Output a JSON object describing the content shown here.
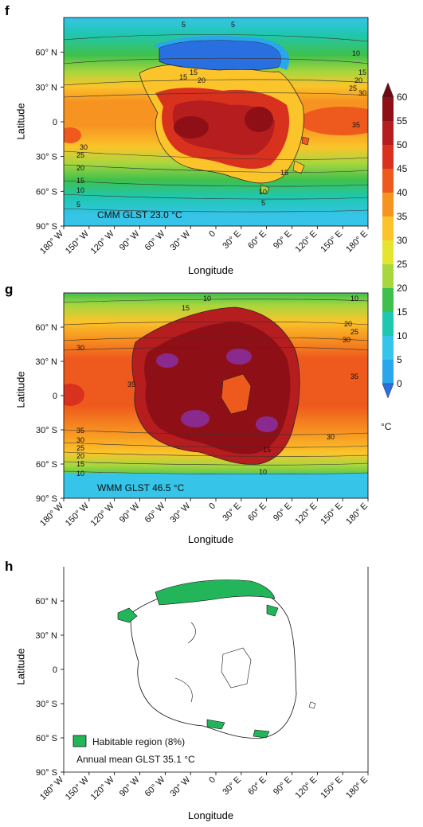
{
  "panels": [
    {
      "letter": "f",
      "annotation": "CMM GLST 23.0 °C",
      "xlabel": "Longitude",
      "ylabel": "Latitude"
    },
    {
      "letter": "g",
      "annotation": "WMM GLST 46.5 °C",
      "xlabel": "Longitude",
      "ylabel": "Latitude"
    },
    {
      "letter": "h",
      "annotation": "Annual mean GLST 35.1 °C",
      "legend_label": "Habitable region (8%)",
      "xlabel": "Longitude",
      "ylabel": "Latitude"
    }
  ],
  "lat_ticks": [
    "60° N",
    "30° N",
    "0",
    "30° S",
    "60° S",
    "90° S"
  ],
  "lon_ticks": [
    "180° W",
    "150° W",
    "120° W",
    "90° W",
    "60° W",
    "30° W",
    "0",
    "30° E",
    "60° E",
    "90° E",
    "120° E",
    "150° E",
    "180° E"
  ],
  "contour_labels_f": [
    "5",
    "5",
    "10",
    "15",
    "20",
    "25",
    "30",
    "35",
    "30",
    "25",
    "20",
    "15",
    "10",
    "5",
    "15",
    "15",
    "20",
    "10",
    "5",
    "15"
  ],
  "contour_labels_g": [
    "10",
    "10",
    "15",
    "20",
    "25",
    "30",
    "30",
    "35",
    "30",
    "35",
    "30",
    "25",
    "20",
    "15",
    "10",
    "10",
    "15",
    "35"
  ],
  "colorbar": {
    "ticks": [
      "60",
      "55",
      "50",
      "45",
      "40",
      "35",
      "30",
      "25",
      "20",
      "15",
      "10",
      "5",
      "0"
    ],
    "unit": "°C",
    "colors": [
      "#6d0a12",
      "#8e1016",
      "#b51d1f",
      "#d8321f",
      "#ee5a1d",
      "#f79421",
      "#fbc42a",
      "#e7e42f",
      "#a8d63e",
      "#3fc04d",
      "#1fc7b0",
      "#36c4e8",
      "#2aa6ec",
      "#2a6fe0"
    ]
  }
}
